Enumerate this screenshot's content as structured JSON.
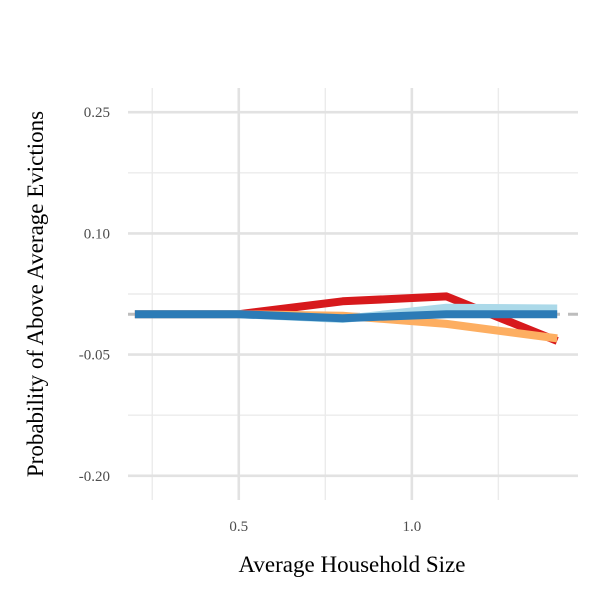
{
  "chart_data": {
    "type": "line",
    "title": "",
    "xlabel": "Average Household Size",
    "ylabel": "Probability of Above Average Evictions",
    "xlim": [
      0.18,
      1.48
    ],
    "ylim": [
      -0.23,
      0.28
    ],
    "x_ticks": [
      0.5,
      1.0
    ],
    "x_tick_labels": [
      "0.5",
      "1.0"
    ],
    "x_minor_ticks": [
      0.25,
      0.75,
      1.25
    ],
    "y_ticks": [
      0.25,
      0.1,
      -0.05,
      -0.2
    ],
    "y_tick_labels": [
      "0.25",
      "0.10",
      "-0.05",
      "-0.20"
    ],
    "y_minor_ticks": [
      0.175,
      0.025,
      -0.125
    ],
    "grid": true,
    "legend": "none",
    "reference_line": {
      "y": 0.0,
      "style": "dashed",
      "color": "#bdbdbd"
    },
    "series": [
      {
        "color": "#d7191c",
        "points": [
          [
            0.2,
            0.0
          ],
          [
            0.5,
            0.0
          ],
          [
            0.8,
            0.016
          ],
          [
            1.1,
            0.022
          ],
          [
            1.42,
            -0.033
          ]
        ]
      },
      {
        "color": "#fdae61",
        "points": [
          [
            0.2,
            0.0
          ],
          [
            0.5,
            0.0
          ],
          [
            0.8,
            -0.002
          ],
          [
            1.1,
            -0.012
          ],
          [
            1.42,
            -0.03
          ]
        ]
      },
      {
        "color": "#abd9e9",
        "points": [
          [
            0.2,
            0.0
          ],
          [
            0.5,
            0.0
          ],
          [
            0.8,
            -0.006
          ],
          [
            1.1,
            0.008
          ],
          [
            1.42,
            0.007
          ]
        ]
      },
      {
        "color": "#2c7bb6",
        "points": [
          [
            0.2,
            0.0
          ],
          [
            0.5,
            0.0
          ],
          [
            0.8,
            -0.005
          ],
          [
            1.1,
            0.0
          ],
          [
            1.42,
            0.0
          ]
        ]
      }
    ]
  }
}
